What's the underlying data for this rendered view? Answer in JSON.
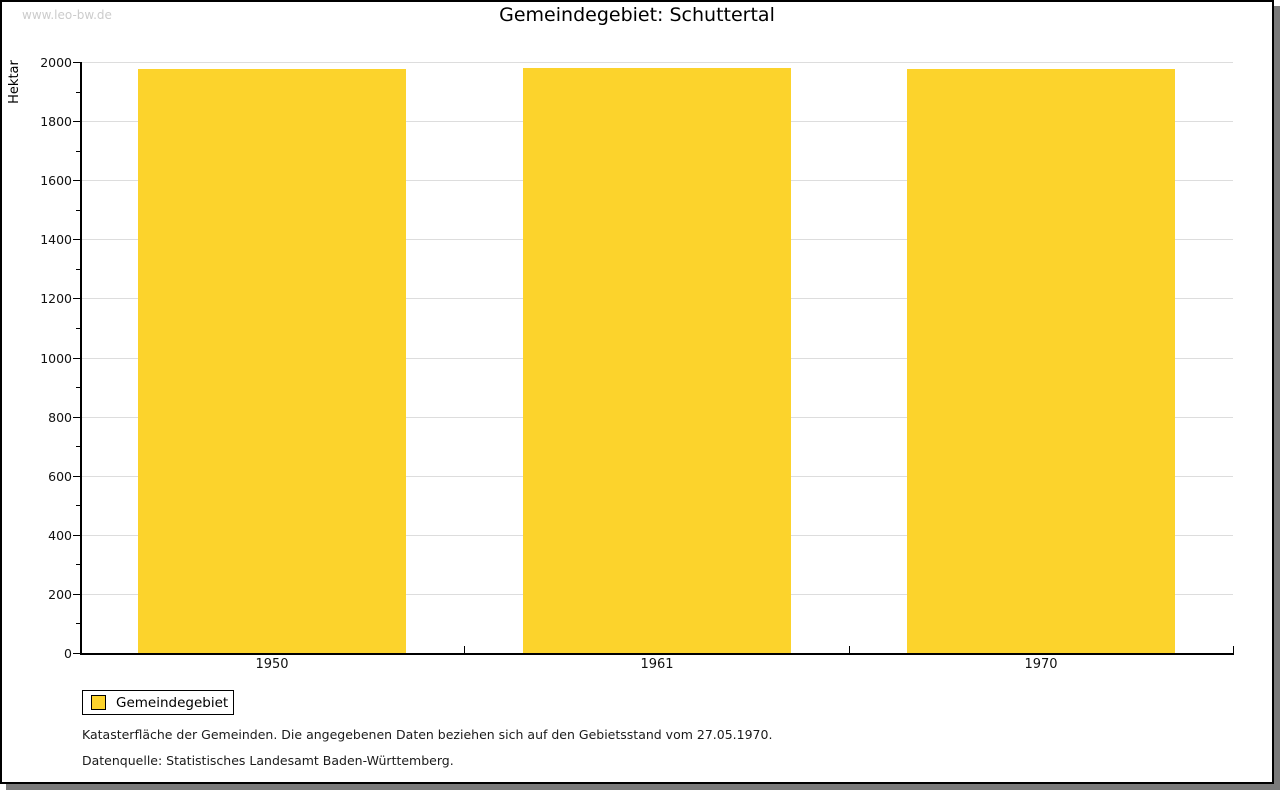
{
  "watermark": "www.leo-bw.de",
  "title": "Gemeindegebiet: Schuttertal",
  "chart_data": {
    "type": "bar",
    "title": "Gemeindegebiet: Schuttertal",
    "categories": [
      "1950",
      "1961",
      "1970"
    ],
    "series": [
      {
        "name": "Gemeindegebiet",
        "values": [
          1976,
          1980,
          1976
        ]
      }
    ],
    "xlabel": "",
    "ylabel": "Hektar",
    "ylim": [
      0,
      2000
    ],
    "ytick_step": 200,
    "yminor_tick_step": 100,
    "grid": true,
    "legend_position": "bottom-left",
    "bar_color": "#FCD32C",
    "gridline_color": "#dddddd",
    "axis_color": "#000000"
  },
  "legend": {
    "label": "Gemeindegebiet",
    "swatch_color": "#FCD32C"
  },
  "notes": {
    "line1": "Katasterfläche der Gemeinden. Die angegebenen Daten beziehen sich auf den Gebietsstand vom 27.05.1970.",
    "line2": "Datenquelle: Statistisches Landesamt Baden-Württemberg."
  }
}
